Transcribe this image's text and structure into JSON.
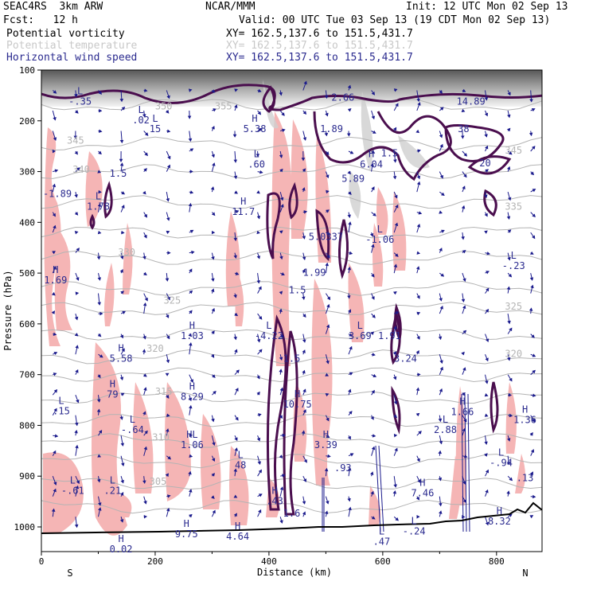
{
  "header": {
    "model": "SEAC4RS  3km ARW",
    "org": "NCAR/MMM",
    "init": "Init: 12 UTC Mon 02 Sep 13",
    "fcst": "Fcst:   12 h",
    "valid": "Valid: 00 UTC Tue 03 Sep 13 (19 CDT Mon 02 Sep 13)",
    "fields": [
      {
        "name": "Potential vorticity",
        "xy": "XY= 162.5,137.6 to 151.5,431.7"
      },
      {
        "name": "Potential temperature",
        "xy": "XY= 162.5,137.6 to 151.5,431.7"
      },
      {
        "name": "Horizontal wind speed",
        "xy": "XY= 162.5,137.6 to 151.5,431.7"
      }
    ]
  },
  "colors": {
    "pv_contour": "#4a0e4e",
    "theta_contour": "#b4b4b4",
    "wind_label": "#2b2b8f",
    "wind_vector": "#1a1a8c",
    "pv_fill": "#f5b5b5",
    "terrain": "#000000"
  },
  "chart_data": {
    "type": "contour",
    "xlabel": "Distance (km)",
    "ylabel": "Pressure (hPa)",
    "xlim": [
      0,
      880
    ],
    "ylim": [
      1050,
      100
    ],
    "x_ticks": [
      "0",
      "200",
      "400",
      "600",
      "800"
    ],
    "y_ticks": [
      "100",
      "200",
      "300",
      "400",
      "500",
      "600",
      "700",
      "800",
      "900",
      "1000"
    ],
    "x_end_labels": {
      "left": "S",
      "right": "N"
    },
    "theta_labels": [
      {
        "text": "350",
        "x": 215,
        "p": 178
      },
      {
        "text": "355",
        "x": 320,
        "p": 178
      },
      {
        "text": "345",
        "x": 60,
        "p": 245
      },
      {
        "text": "340",
        "x": 70,
        "p": 302
      },
      {
        "text": "335",
        "x": 830,
        "p": 375
      },
      {
        "text": "330",
        "x": 150,
        "p": 465
      },
      {
        "text": "325",
        "x": 230,
        "p": 560
      },
      {
        "text": "325",
        "x": 830,
        "p": 572
      },
      {
        "text": "320",
        "x": 200,
        "p": 655
      },
      {
        "text": "320",
        "x": 830,
        "p": 665
      },
      {
        "text": "315",
        "x": 215,
        "p": 740
      },
      {
        "text": "310",
        "x": 210,
        "p": 830
      },
      {
        "text": "305",
        "x": 205,
        "p": 917
      },
      {
        "text": "345",
        "x": 830,
        "p": 265
      }
    ],
    "wind_extrema": [
      {
        "hl": "L",
        "text": "-.35",
        "x": 68,
        "p": 168
      },
      {
        "hl": "L",
        "text": ".02",
        "x": 175,
        "p": 205
      },
      {
        "hl": "L",
        "text": "15",
        "x": 200,
        "p": 222
      },
      {
        "hl": "H",
        "text": "5.38",
        "x": 375,
        "p": 222
      },
      {
        "hl": "L",
        "text": ".60",
        "x": 378,
        "p": 292
      },
      {
        "hl": "",
        "text": "2.66",
        "x": 530,
        "p": 160
      },
      {
        "hl": "",
        "text": "14.89",
        "x": 755,
        "p": 168
      },
      {
        "hl": "",
        "text": "1.89",
        "x": 510,
        "p": 222
      },
      {
        "hl": "",
        "text": "38",
        "x": 742,
        "p": 222
      },
      {
        "hl": "H",
        "text": "6.04",
        "x": 580,
        "p": 292
      },
      {
        "hl": "",
        "text": "5.89",
        "x": 548,
        "p": 320
      },
      {
        "hl": "",
        "text": "1.5",
        "x": 612,
        "p": 270
      },
      {
        "hl": "",
        "text": "20",
        "x": 780,
        "p": 290
      },
      {
        "hl": "",
        "text": "1.5",
        "x": 135,
        "p": 310
      },
      {
        "hl": "",
        "text": "-1.89",
        "x": 28,
        "p": 350
      },
      {
        "hl": "L",
        "text": "1.78",
        "x": 100,
        "p": 375
      },
      {
        "hl": "H",
        "text": "11.7",
        "x": 355,
        "p": 385
      },
      {
        "hl": "",
        "text": "5.0337",
        "x": 500,
        "p": 435
      },
      {
        "hl": "L",
        "text": "-1.06",
        "x": 595,
        "p": 440
      },
      {
        "hl": "H",
        "text": "1.69",
        "x": 25,
        "p": 520
      },
      {
        "hl": "",
        "text": "1.99",
        "x": 480,
        "p": 505
      },
      {
        "hl": "",
        "text": "1.5",
        "x": 450,
        "p": 540
      },
      {
        "hl": "L",
        "text": "-.23",
        "x": 830,
        "p": 492
      },
      {
        "hl": "H",
        "text": "1.03",
        "x": 265,
        "p": 630
      },
      {
        "hl": "L",
        "text": "-4.22",
        "x": 400,
        "p": 630
      },
      {
        "hl": "L",
        "text": "3.69",
        "x": 560,
        "p": 630
      },
      {
        "hl": "",
        "text": "1.91",
        "x": 612,
        "p": 630
      },
      {
        "hl": "H",
        "text": "5.58",
        "x": 140,
        "p": 675
      },
      {
        "hl": "",
        "text": "1.5",
        "x": 440,
        "p": 675
      },
      {
        "hl": "",
        "text": "3.24",
        "x": 640,
        "p": 675
      },
      {
        "hl": "H",
        "text": "79",
        "x": 125,
        "p": 745
      },
      {
        "hl": "H",
        "text": "8.29",
        "x": 265,
        "p": 750
      },
      {
        "hl": "H",
        "text": "10.75",
        "x": 450,
        "p": 765
      },
      {
        "hl": "L",
        "text": ".15",
        "x": 35,
        "p": 778
      },
      {
        "hl": "H",
        "text": "1.66",
        "x": 740,
        "p": 780
      },
      {
        "hl": "H",
        "text": "1.36",
        "x": 850,
        "p": 795
      },
      {
        "hl": "L",
        "text": "-.64",
        "x": 160,
        "p": 815
      },
      {
        "hl": "L",
        "text": "2.88",
        "x": 710,
        "p": 815
      },
      {
        "hl": "HL",
        "text": "1.06",
        "x": 265,
        "p": 845
      },
      {
        "hl": "H",
        "text": "3.39",
        "x": 500,
        "p": 845
      },
      {
        "hl": "L",
        "text": "48",
        "x": 350,
        "p": 885
      },
      {
        "hl": "",
        "text": ".93",
        "x": 530,
        "p": 890
      },
      {
        "hl": "L",
        "text": "-.94",
        "x": 808,
        "p": 880
      },
      {
        "hl": "",
        "text": ".13",
        "x": 850,
        "p": 910
      },
      {
        "hl": "L",
        "text": "-.61",
        "x": 55,
        "p": 935
      },
      {
        "hl": "L",
        "text": ".21",
        "x": 125,
        "p": 935
      },
      {
        "hl": "H",
        "text": "7.46",
        "x": 670,
        "p": 940
      },
      {
        "hl": "H",
        "text": ".43",
        "x": 410,
        "p": 955
      },
      {
        "hl": "",
        "text": "1.6",
        "x": 440,
        "p": 980
      },
      {
        "hl": "H",
        "text": "8.32",
        "x": 805,
        "p": 995
      },
      {
        "hl": "H",
        "text": "9.75",
        "x": 255,
        "p": 1020
      },
      {
        "hl": "H",
        "text": "4.64",
        "x": 345,
        "p": 1025
      },
      {
        "hl": "L",
        "text": "-.24",
        "x": 655,
        "p": 1015
      },
      {
        "hl": "L",
        "text": ".47",
        "x": 598,
        "p": 1035
      },
      {
        "hl": "H",
        "text": "0.02",
        "x": 140,
        "p": 1050
      }
    ]
  }
}
